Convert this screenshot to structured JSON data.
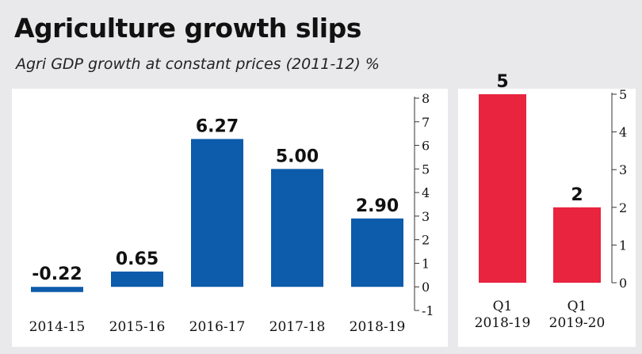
{
  "header": {
    "title": "Agriculture growth slips",
    "subtitle": "Agri GDP growth at constant prices (2011-12) %"
  },
  "colors": {
    "background": "#e9e9eb",
    "panel": "#ffffff",
    "annual_bar": "#0d5bab",
    "quarter_bar": "#e8243f",
    "grid": "#cfd3da"
  },
  "chart_data": [
    {
      "type": "bar",
      "categories": [
        "2014-15",
        "2015-16",
        "2016-17",
        "2017-18",
        "2018-19"
      ],
      "values": [
        -0.22,
        0.65,
        6.27,
        5.0,
        2.9
      ],
      "value_labels": [
        "-0.22",
        "0.65",
        "6.27",
        "5.00",
        "2.90"
      ],
      "title": "",
      "xlabel": "",
      "ylabel": "",
      "ylim": [
        -1,
        8
      ],
      "yticks": [
        -1,
        0,
        1,
        2,
        3,
        4,
        5,
        6,
        7,
        8
      ],
      "grid": false,
      "legend": "none"
    },
    {
      "type": "bar",
      "categories": [
        [
          "Q1",
          "2018-19"
        ],
        [
          "Q1",
          "2019-20"
        ]
      ],
      "values": [
        5,
        2
      ],
      "value_labels": [
        "5",
        "2"
      ],
      "title": "",
      "xlabel": "",
      "ylabel": "",
      "ylim": [
        0,
        5
      ],
      "yticks": [
        0,
        1,
        2,
        3,
        4,
        5
      ],
      "grid": false,
      "legend": "none"
    }
  ]
}
